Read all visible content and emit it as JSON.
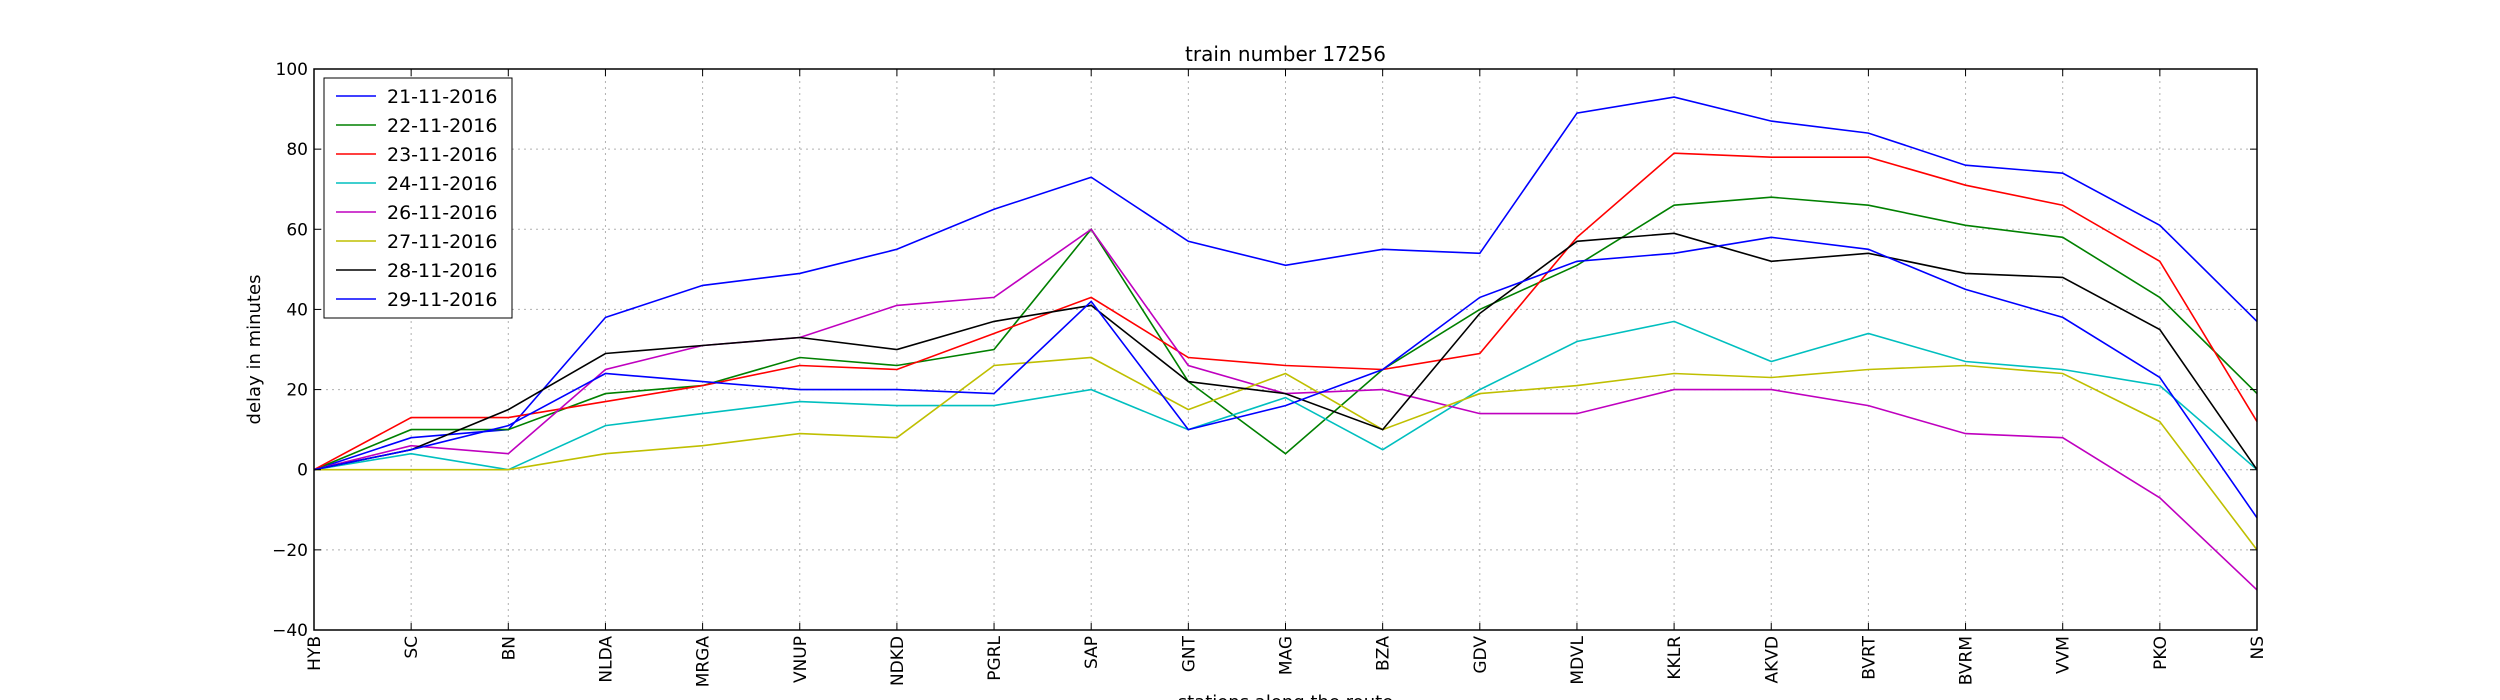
{
  "chart_data": {
    "type": "line",
    "title": "train number 17256",
    "xlabel": "stations along the route",
    "ylabel": "delay in minutes",
    "ylim": [
      -40,
      100
    ],
    "yticks": [
      -40,
      -20,
      0,
      20,
      40,
      60,
      80,
      100
    ],
    "grid": true,
    "legend_position": "top-left",
    "categories": [
      "HYB",
      "SC",
      "BN",
      "NLDA",
      "MRGA",
      "VNUP",
      "NDKD",
      "PGRL",
      "SAP",
      "GNT",
      "MAG",
      "BZA",
      "GDV",
      "MDVL",
      "KKLR",
      "AKVD",
      "BVRT",
      "BVRM",
      "VVM",
      "PKO",
      "NS"
    ],
    "series": [
      {
        "name": "21-11-2016",
        "color": "#0000ff",
        "values": [
          0,
          8,
          10,
          38,
          46,
          49,
          55,
          65,
          73,
          57,
          51,
          55,
          54,
          89,
          93,
          87,
          84,
          76,
          74,
          61,
          37
        ]
      },
      {
        "name": "22-11-2016",
        "color": "#008000",
        "values": [
          0,
          10,
          10,
          19,
          21,
          28,
          26,
          30,
          60,
          22,
          4,
          25,
          40,
          51,
          66,
          68,
          66,
          61,
          58,
          43,
          19
        ]
      },
      {
        "name": "23-11-2016",
        "color": "#ff0000",
        "values": [
          0,
          13,
          13,
          17,
          21,
          26,
          25,
          34,
          43,
          28,
          26,
          25,
          29,
          58,
          79,
          78,
          78,
          71,
          66,
          52,
          12
        ]
      },
      {
        "name": "24-11-2016",
        "color": "#00bfbf",
        "values": [
          0,
          4,
          0,
          11,
          14,
          17,
          16,
          16,
          20,
          10,
          18,
          5,
          20,
          32,
          37,
          27,
          34,
          27,
          25,
          21,
          0
        ]
      },
      {
        "name": "26-11-2016",
        "color": "#bf00bf",
        "values": [
          0,
          6,
          4,
          25,
          31,
          33,
          41,
          43,
          60,
          26,
          19,
          20,
          14,
          14,
          20,
          20,
          16,
          9,
          8,
          -7,
          -30
        ]
      },
      {
        "name": "27-11-2016",
        "color": "#bfbf00",
        "values": [
          0,
          0,
          0,
          4,
          6,
          9,
          8,
          26,
          28,
          15,
          24,
          10,
          19,
          21,
          24,
          23,
          25,
          26,
          24,
          12,
          -20
        ]
      },
      {
        "name": "28-11-2016",
        "color": "#000000",
        "values": [
          0,
          5,
          15,
          29,
          31,
          33,
          30,
          37,
          41,
          22,
          19,
          10,
          39,
          57,
          59,
          52,
          54,
          49,
          48,
          35,
          0
        ]
      },
      {
        "name": "29-11-2016",
        "color": "#0000ff",
        "values": [
          0,
          5,
          11,
          24,
          22,
          20,
          20,
          19,
          42,
          10,
          16,
          25,
          43,
          52,
          54,
          58,
          55,
          45,
          38,
          23,
          -12
        ]
      }
    ]
  }
}
